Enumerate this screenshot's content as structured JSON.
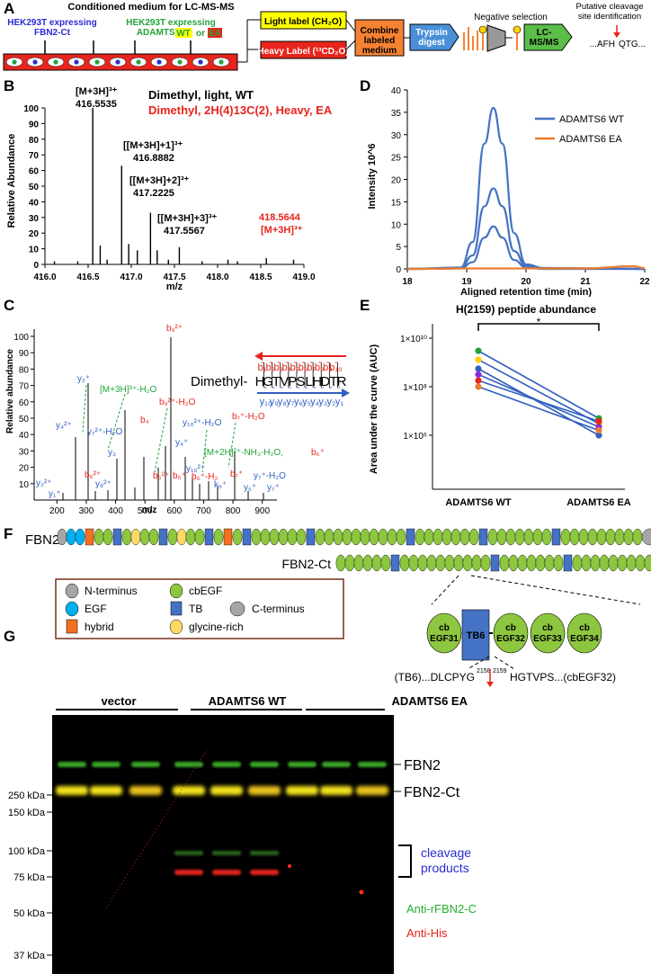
{
  "panel_letters": [
    "A",
    "B",
    "C",
    "D",
    "E",
    "F",
    "G"
  ],
  "colors": {
    "blue": "#2f5fbf",
    "red": "#e8241c",
    "green": "#22a33a",
    "orange": "#ed7d31",
    "yellow": "#ffff00",
    "cbEGF": "#8dc63f",
    "TB": "#4472c4",
    "EGF": "#00b0f0",
    "hybrid": "#f37021",
    "glycine": "#ffd966",
    "gray": "#a6a6a6"
  },
  "panelA": {
    "title": "Conditioned medium for LC-MS-MS",
    "cell_left": "HEK293T expressing FBN2-Ct",
    "cell_right_1": "HEK293T expressing",
    "cell_right_2": "ADAMTS6",
    "wt": "WT",
    "or": "or",
    "ea": "EA",
    "light": "Light label (CH₂O)",
    "heavy": "Heavy Label (¹³CD₂O)",
    "combine": "Combine labeled medium",
    "trypsin": "Trypsin digest",
    "negsel": "Negative selection",
    "lcms": "LC-MS/MS",
    "putative": "Putative cleavage site identification",
    "site": "...AFH",
    "site2": "QTG..."
  },
  "panelB": {
    "legend_light": "Dimethyl, light, WT",
    "legend_heavy": "Dimethyl, 2H(4)13C(2), Heavy, EA",
    "ylabel": "Relative Abundance",
    "xlabel": "m/z",
    "xticks": [
      "416.0",
      "416.5",
      "417.0",
      "417.5",
      "418.0",
      "418.5",
      "419.0"
    ],
    "yticks": [
      "0",
      "10",
      "20",
      "30",
      "40",
      "50",
      "60",
      "70",
      "80",
      "90",
      "100"
    ],
    "ann1a": "[M+3H]³⁺",
    "ann1b": "416.5535",
    "ann2a": "[[M+3H]+1]³⁺",
    "ann2b": "416.8882",
    "ann3a": "[[M+3H]+2]³⁺",
    "ann3b": "417.2225",
    "ann4a": "[[M+3H]+3]³⁺",
    "ann4b": "417.5567",
    "ann5a": "418.5644",
    "ann5b": "[M+3H]³⁺"
  },
  "chart_data": [
    {
      "type": "bar",
      "title": "",
      "xlabel": "m/z",
      "ylabel": "Relative Abundance",
      "xlim": [
        416.0,
        419.0
      ],
      "ylim": [
        0,
        100
      ],
      "x": [
        416.11,
        416.38,
        416.5535,
        416.64,
        416.72,
        416.8882,
        416.97,
        417.07,
        417.2225,
        417.3,
        417.43,
        417.5567,
        417.82,
        418.12,
        418.23,
        418.5644,
        418.88
      ],
      "values": [
        2,
        2,
        100,
        12,
        3,
        63,
        13,
        9,
        33,
        9,
        3,
        11,
        2,
        3,
        2,
        4,
        3
      ]
    },
    {
      "type": "line",
      "title": "",
      "xlabel": "Aligned retention time (min)",
      "ylabel": "Intensity 10^6",
      "xlim": [
        18,
        22
      ],
      "ylim": [
        0,
        40
      ],
      "series": [
        {
          "name": "ADAMTS6 WT",
          "x": [
            18,
            18.9,
            19.1,
            19.3,
            19.45,
            19.6,
            19.8,
            20.0,
            20.3,
            22
          ],
          "values": [
            0,
            0.3,
            6,
            28,
            36,
            28,
            8,
            1,
            0.2,
            0
          ]
        },
        {
          "name": "",
          "x": [
            18,
            18.9,
            19.1,
            19.3,
            19.45,
            19.6,
            19.8,
            20.0,
            20.3,
            22
          ],
          "values": [
            0,
            0.2,
            3,
            14,
            18,
            14,
            4,
            0.6,
            0.1,
            0
          ]
        },
        {
          "name": "",
          "x": [
            18,
            18.9,
            19.1,
            19.3,
            19.45,
            19.6,
            19.8,
            20.0,
            20.3,
            22
          ],
          "values": [
            0,
            0.1,
            1.5,
            7,
            9.5,
            7,
            2,
            0.3,
            0,
            0
          ]
        },
        {
          "name": "ADAMTS6 EA",
          "x": [
            18,
            19,
            20,
            21,
            21.8,
            22
          ],
          "values": [
            0,
            0.1,
            0.1,
            0.1,
            0.6,
            0.2
          ]
        }
      ]
    },
    {
      "type": "scatter",
      "title": "H(2159) peptide abundance",
      "xlabel": "",
      "ylabel": "Area under the curve (AUC)",
      "categories": [
        "ADAMTS6 WT",
        "ADAMTS6 EA"
      ],
      "ylog": true,
      "yticks": [
        "1×10⁶",
        "1×10⁸",
        "1×10¹⁰"
      ],
      "significance": "*",
      "pairs": [
        {
          "color": "#22a33a",
          "values": [
            3000000000.0,
            5000000.0
          ]
        },
        {
          "color": "#ffd200",
          "values": [
            1300000000.0,
            3000000.0
          ]
        },
        {
          "color": "#2f5fbf",
          "values": [
            550000000.0,
            1000000.0
          ]
        },
        {
          "color": "#8a2be2",
          "values": [
            320000000.0,
            2200000.0
          ]
        },
        {
          "color": "#e8241c",
          "values": [
            180000000.0,
            3800000.0
          ]
        },
        {
          "color": "#ed7d31",
          "values": [
            100000000.0,
            1600000.0
          ]
        }
      ]
    }
  ],
  "panelC": {
    "ylabel": "Relative abundance",
    "xlabel": "m/z",
    "xticks": [
      "200",
      "300",
      "400",
      "500",
      "600",
      "700",
      "800",
      "900"
    ],
    "yticks": [
      "10",
      "20",
      "30",
      "40",
      "50",
      "60",
      "70",
      "80",
      "90",
      "100"
    ],
    "prefix": "Dimethyl-",
    "seq": [
      "H",
      "G",
      "T",
      "V",
      "P",
      "S",
      "L",
      "H",
      "D",
      "T",
      "R"
    ],
    "b_ions": [
      "b₁",
      "b₂",
      "b₃",
      "b₄",
      "b₅",
      "b₆",
      "b₇",
      "b₈",
      "b₉",
      "b₁₀"
    ],
    "y_ions": [
      "y₁₀",
      "y₉",
      "y₈",
      "y₇",
      "y₆",
      "y₅",
      "y₄",
      "y₃",
      "y₂",
      "y₁"
    ],
    "ann_b9": "b₉²⁺",
    "ann_y2": "y₂⁺",
    "ann_m3h": "[M+3H]³⁺-H₂O",
    "ann_b9h2o": "b₉²⁺-H₂O",
    "ann_y102": "y₁₀²⁺-H₂O",
    "ann_b7": "b₇⁺-H₂O",
    "ann_b4": "b₄",
    "ann_y4": "y₄²⁺",
    "ann_y7": "y₇²⁺-H₂O",
    "ann_y3": "y₃",
    "ann_y4p": "y₄⁺",
    "ann_m2h": "[M+2H]²⁺-NH₃-H₂O,",
    "ann_b6p": "b₆⁺",
    "ann_y10": "y₁₀²⁺",
    "ann_b6": "b₆²⁺",
    "ann_b6b": "b₆²⁺",
    "ann_b5": "b₅⁺",
    "ann_b6h": "b₆⁺-H₂",
    "ann_b7p": "b₇⁺",
    "ann_y7b": "y₇⁺-H₂O",
    "ann_y6": "y₆⁺",
    "ann_y7c": "y₇⁺",
    "ann_y2b": "y₂²⁺",
    "ann_y1": "y₁⁺",
    "ann_y8": "y₈²⁺",
    "ann_k5": "k₅⁺"
  },
  "panelD": {
    "ylabel": "Intensity 10^6",
    "xlabel": "Aligned retention time (min)",
    "xticks": [
      "18",
      "19",
      "20",
      "21",
      "22"
    ],
    "yticks": [
      "0",
      "5",
      "10",
      "15",
      "20",
      "25",
      "30",
      "35",
      "40"
    ],
    "leg_wt": "ADAMTS6 WT",
    "leg_ea": "ADAMTS6 EA"
  },
  "panelE": {
    "title": "H(2159) peptide abundance",
    "ylabel": "Area under the curve (AUC)",
    "yt1": "1×10⁶",
    "yt2": "1×10⁸",
    "yt3": "1×10¹⁰",
    "x1": "ADAMTS6 WT",
    "x2": "ADAMTS6 EA",
    "star": "*"
  },
  "panelF": {
    "fbn2": "FBN2",
    "fbn2ct": "FBN2-Ct",
    "legend": {
      "nterm": "N-terminus",
      "cbegf": "cbEGF",
      "egf": "EGF",
      "tb": "TB",
      "cterm": "C-terminus",
      "hybrid": "hybrid",
      "gly": "glycine-rich"
    },
    "cb": "cb",
    "egf31": "EGF31",
    "tb6": "TB6",
    "egf32": "EGF32",
    "egf33": "EGF33",
    "egf34": "EGF34",
    "seq_left": "(TB6)...DLCPYG",
    "n2158": "2158",
    "n2159": "2159",
    "seq_right": "HGTVPS...(cbEGF32)"
  },
  "panelG": {
    "lanes": [
      "vector",
      "ADAMTS6 WT",
      "ADAMTS6 EA"
    ],
    "mw": [
      "250 kDa",
      "150 kDa",
      "100 kDa",
      "75 kDa",
      "50 kDa",
      "37 kDa"
    ],
    "fbn2": "FBN2",
    "fbn2ct": "FBN2-Ct",
    "cleavage1": "cleavage",
    "cleavage2": "products",
    "anti_green": "Anti-rFBN2-C",
    "anti_red": "Anti-His"
  }
}
